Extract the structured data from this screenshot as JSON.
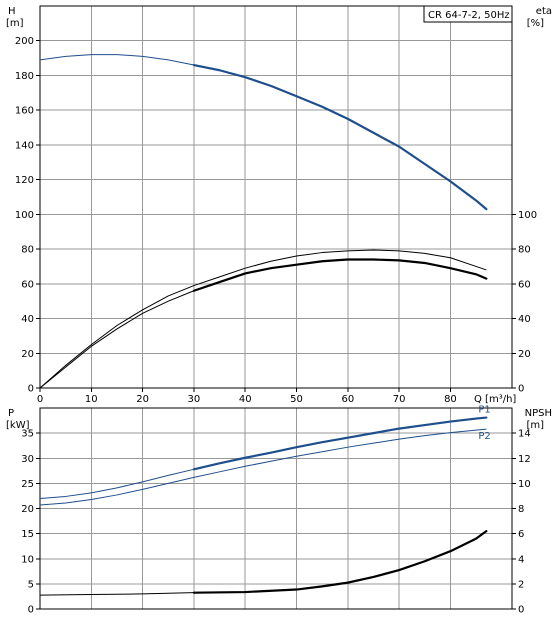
{
  "legend_box": "CR 64-7-2, 50Hz",
  "colors": {
    "pump": "#1f4e8c",
    "black": "#000000",
    "grid": "#999999"
  },
  "chart_data": [
    {
      "type": "line",
      "title": "",
      "left_axis": {
        "name": "H",
        "unit": "[m]",
        "ticks": [
          0,
          20,
          40,
          60,
          80,
          100,
          120,
          140,
          160,
          180,
          200
        ],
        "range": [
          0,
          220
        ]
      },
      "right_axis": {
        "name": "eta",
        "unit": "[%]",
        "ticks": [
          0,
          20,
          40,
          60,
          80,
          100
        ],
        "range": [
          0,
          220
        ]
      },
      "x_axis": {
        "name": "Q",
        "unit": "[m³/h]",
        "ticks": [
          0,
          10,
          20,
          30,
          40,
          50,
          60,
          70,
          80
        ],
        "range": [
          0,
          92
        ]
      },
      "grid": true,
      "series": [
        {
          "key": "H",
          "color": "#1f4e8c",
          "x": [
            0,
            5,
            10,
            15,
            20,
            25,
            30,
            35,
            40,
            45,
            50,
            55,
            60,
            65,
            70,
            75,
            80,
            85,
            87
          ],
          "y": [
            189,
            191,
            192,
            192,
            191,
            189,
            186,
            183,
            179,
            174,
            168,
            162,
            155,
            147,
            139,
            129,
            119,
            108,
            103
          ],
          "bold_from": 30
        },
        {
          "key": "eta_outer",
          "color": "#000000",
          "x": [
            0,
            5,
            10,
            15,
            20,
            25,
            30,
            35,
            40,
            45,
            50,
            55,
            60,
            65,
            70,
            75,
            80,
            85,
            87
          ],
          "y": [
            0,
            13,
            25,
            36,
            45,
            53,
            59,
            64,
            69,
            73,
            76,
            78,
            79,
            79.5,
            79,
            77.5,
            75,
            70,
            68
          ],
          "bold_from": 100
        },
        {
          "key": "eta_inner",
          "color": "#000000",
          "x": [
            0,
            5,
            10,
            15,
            20,
            25,
            30,
            35,
            40,
            45,
            50,
            55,
            60,
            65,
            70,
            75,
            80,
            85,
            87
          ],
          "y": [
            0,
            12,
            24,
            34,
            43,
            50,
            56,
            61,
            66,
            69,
            71,
            73,
            74,
            74,
            73.5,
            72,
            69,
            65.5,
            63
          ],
          "bold_from": 30
        }
      ]
    },
    {
      "type": "line",
      "title": "",
      "left_axis": {
        "name": "P",
        "unit": "[kW]",
        "ticks": [
          0,
          5,
          10,
          15,
          20,
          25,
          30,
          35
        ],
        "range": [
          0,
          40
        ]
      },
      "right_axis": {
        "name": "NPSH",
        "unit": "[m]",
        "ticks": [
          0,
          2,
          4,
          6,
          8,
          10,
          12,
          14
        ],
        "range": [
          0,
          16
        ]
      },
      "x_axis": {
        "range": [
          0,
          92
        ]
      },
      "grid": true,
      "series": [
        {
          "key": "P1",
          "label": "P1",
          "color": "#1f4e8c",
          "x": [
            0,
            5,
            10,
            15,
            20,
            25,
            30,
            35,
            40,
            45,
            50,
            55,
            60,
            65,
            70,
            75,
            80,
            85,
            87
          ],
          "y": [
            22,
            22.4,
            23.1,
            24.1,
            25.3,
            26.6,
            27.8,
            29,
            30.1,
            31.1,
            32.2,
            33.2,
            34.1,
            35,
            35.9,
            36.6,
            37.3,
            37.9,
            38.1
          ],
          "bold_from": 30
        },
        {
          "key": "P2",
          "label": "P2",
          "color": "#1f4e8c",
          "x": [
            0,
            5,
            10,
            15,
            20,
            25,
            30,
            35,
            40,
            45,
            50,
            55,
            60,
            65,
            70,
            75,
            80,
            85,
            87
          ],
          "y": [
            20.7,
            21.1,
            21.8,
            22.7,
            23.8,
            25,
            26.2,
            27.3,
            28.4,
            29.4,
            30.4,
            31.3,
            32.2,
            33,
            33.8,
            34.5,
            35.1,
            35.6,
            35.8
          ],
          "bold_from": 100
        },
        {
          "key": "NPSH",
          "color": "#000000",
          "axis": "right",
          "x": [
            0,
            10,
            20,
            30,
            40,
            50,
            55,
            60,
            65,
            70,
            75,
            80,
            85,
            87
          ],
          "y": [
            1.1,
            1.15,
            1.2,
            1.3,
            1.35,
            1.55,
            1.8,
            2.1,
            2.55,
            3.1,
            3.8,
            4.6,
            5.6,
            6.2
          ],
          "bold_from": 30
        }
      ]
    }
  ]
}
